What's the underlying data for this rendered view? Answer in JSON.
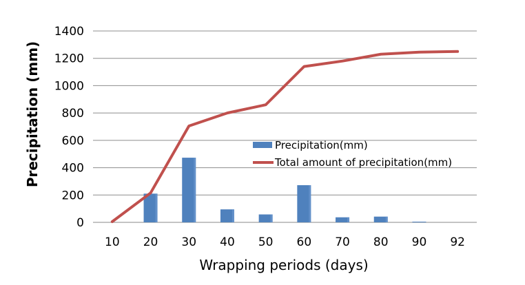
{
  "chart_data": {
    "type": "bar",
    "title": "",
    "xlabel": "Wrapping periods (days)",
    "ylabel": "Precipitation (mm)",
    "ylim": [
      0,
      1400
    ],
    "yticks": [
      0,
      200,
      400,
      600,
      800,
      1000,
      1200,
      1400
    ],
    "grid": true,
    "legend_position": "center",
    "categories": [
      "10",
      "20",
      "30",
      "40",
      "50",
      "60",
      "70",
      "80",
      "90",
      "92"
    ],
    "series": [
      {
        "name": "Precipitation(mm)",
        "type": "bar",
        "color": "#4F81BD",
        "values": [
          0,
          210,
          473,
          95,
          58,
          272,
          37,
          42,
          5,
          0
        ]
      },
      {
        "name": "Total amount of precipitation(mm)",
        "type": "line",
        "color": "#C0504D",
        "values": [
          5,
          215,
          705,
          800,
          860,
          1140,
          1180,
          1230,
          1245,
          1250
        ]
      }
    ]
  }
}
